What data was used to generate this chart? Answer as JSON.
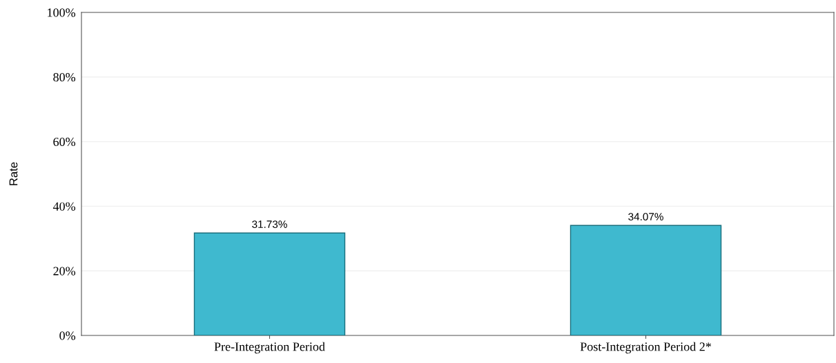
{
  "chart_data": {
    "type": "bar",
    "ylabel": "Rate",
    "categories": [
      "Pre-Integration Period",
      "Post-Integration Period 2*"
    ],
    "values": [
      31.73,
      34.07
    ],
    "value_labels": [
      "31.73%",
      "34.07%"
    ],
    "color": "#3fb9cf",
    "ylim": [
      0,
      100
    ],
    "yticks": [
      {
        "value": 0,
        "label": "0%"
      },
      {
        "value": 20,
        "label": "20%"
      },
      {
        "value": 40,
        "label": "40%"
      },
      {
        "value": 60,
        "label": "60%"
      },
      {
        "value": 80,
        "label": "80%"
      },
      {
        "value": 100,
        "label": "100%"
      }
    ],
    "grid": "y"
  }
}
